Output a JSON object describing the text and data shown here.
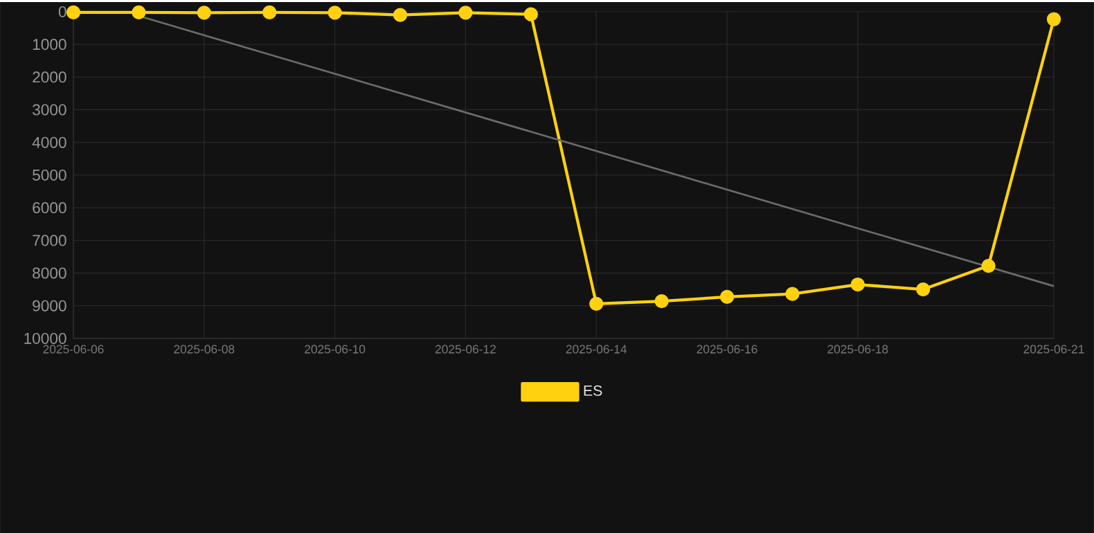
{
  "chart_data": {
    "type": "line",
    "x": [
      "2025-06-06",
      "2025-06-07",
      "2025-06-08",
      "2025-06-09",
      "2025-06-10",
      "2025-06-11",
      "2025-06-12",
      "2025-06-13",
      "2025-06-14",
      "2025-06-15",
      "2025-06-16",
      "2025-06-17",
      "2025-06-18",
      "2025-06-19",
      "2025-06-20",
      "2025-06-21"
    ],
    "series": [
      {
        "name": "ES",
        "color": "#ffd10f",
        "values": [
          20,
          20,
          30,
          20,
          30,
          100,
          30,
          80,
          8940,
          8860,
          8730,
          8640,
          8350,
          8500,
          7780,
          230
        ]
      },
      {
        "type": "line",
        "color": "#6b6b6b",
        "marker": "none",
        "x": [
          "2025-06-07",
          "2025-06-21"
        ],
        "values": [
          130,
          8400
        ]
      }
    ],
    "xlim": [
      "2025-06-06",
      "2025-06-21"
    ],
    "xticks": [
      "2025-06-06",
      "2025-06-08",
      "2025-06-10",
      "2025-06-12",
      "2025-06-14",
      "2025-06-16",
      "2025-06-18",
      "2025-06-21"
    ],
    "ylim": [
      10000,
      0
    ],
    "yticks": [
      0,
      1000,
      2000,
      3000,
      4000,
      5000,
      6000,
      7000,
      8000,
      9000,
      10000
    ],
    "grid": true,
    "legend": "bottom",
    "marker": "circle"
  }
}
